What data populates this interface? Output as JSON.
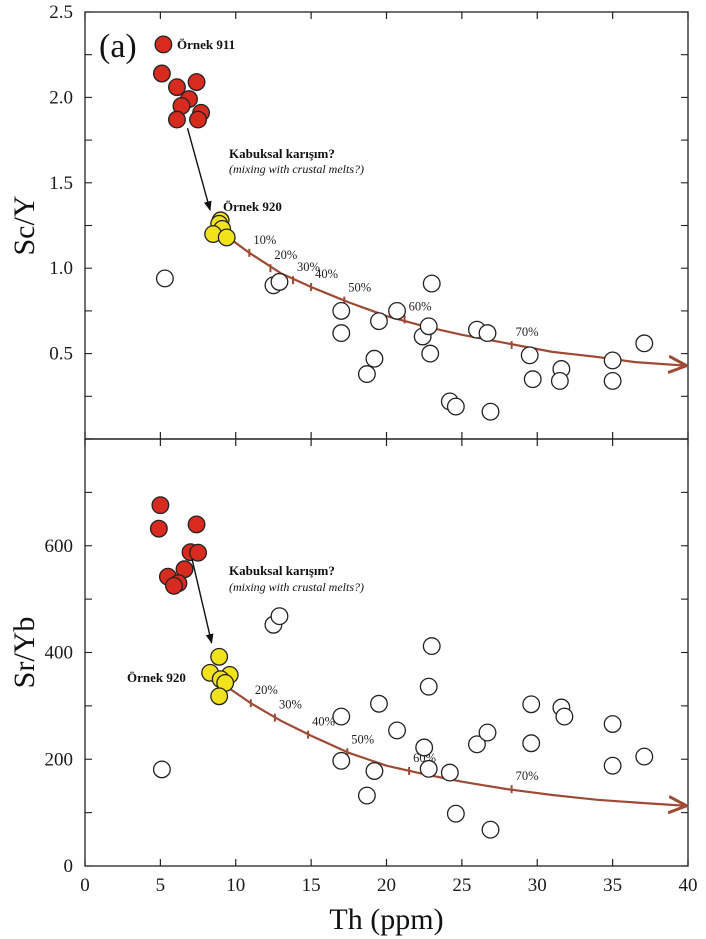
{
  "colors": {
    "crustal_open": "#ffffff",
    "sample_911": "#d62b1e",
    "sample_920": "#f2e21b",
    "curve": "#9e4a35",
    "stroke": "#222222"
  },
  "chart_data": [
    {
      "type": "scatter",
      "panel": "top",
      "title": "(a)",
      "xlabel": "",
      "ylabel": "Sc/Y",
      "xlim": [
        0,
        40
      ],
      "ylim": [
        0,
        2.5
      ],
      "xticks": [
        0,
        5,
        10,
        15,
        20,
        25,
        30,
        35,
        40
      ],
      "yticks": [
        0.5,
        1.0,
        1.5,
        2.0,
        2.5
      ],
      "ytick_labels": [
        "0.5",
        "1.0",
        "1.5",
        "2.0",
        "2.5"
      ],
      "series": [
        {
          "name": "Örnek 911",
          "color": "#d62b1e",
          "points": [
            [
              5.2,
              2.31
            ],
            [
              5.1,
              2.14
            ],
            [
              6.1,
              2.06
            ],
            [
              7.4,
              2.09
            ],
            [
              6.9,
              1.99
            ],
            [
              6.4,
              1.95
            ],
            [
              7.7,
              1.91
            ],
            [
              6.1,
              1.87
            ],
            [
              7.5,
              1.87
            ]
          ]
        },
        {
          "name": "Örnek 920",
          "color": "#f2e21b",
          "points": [
            [
              9.0,
              1.28
            ],
            [
              8.9,
              1.26
            ],
            [
              9.1,
              1.23
            ],
            [
              8.5,
              1.2
            ],
            [
              9.4,
              1.18
            ]
          ]
        },
        {
          "name": "",
          "color": "#ffffff",
          "points": [
            [
              5.3,
              0.94
            ],
            [
              12.5,
              0.9
            ],
            [
              12.9,
              0.92
            ],
            [
              17.0,
              0.75
            ],
            [
              17.0,
              0.62
            ],
            [
              19.5,
              0.69
            ],
            [
              20.7,
              0.75
            ],
            [
              23.0,
              0.91
            ],
            [
              22.4,
              0.6
            ],
            [
              22.8,
              0.66
            ],
            [
              22.9,
              0.5
            ],
            [
              19.2,
              0.47
            ],
            [
              18.7,
              0.38
            ],
            [
              26.0,
              0.64
            ],
            [
              26.7,
              0.62
            ],
            [
              24.2,
              0.22
            ],
            [
              24.6,
              0.19
            ],
            [
              26.9,
              0.16
            ],
            [
              29.5,
              0.49
            ],
            [
              29.7,
              0.35
            ],
            [
              31.6,
              0.41
            ],
            [
              31.5,
              0.34
            ],
            [
              35.0,
              0.46
            ],
            [
              35.0,
              0.34
            ],
            [
              37.1,
              0.56
            ]
          ]
        }
      ],
      "mixing_curve": {
        "points": [
          [
            9.2,
            1.2
          ],
          [
            10.9,
            1.09
          ],
          [
            13.0,
            0.97
          ],
          [
            15.0,
            0.89
          ],
          [
            17.5,
            0.8
          ],
          [
            20.0,
            0.72
          ],
          [
            22.5,
            0.66
          ],
          [
            25.0,
            0.61
          ],
          [
            28.0,
            0.56
          ],
          [
            31.0,
            0.51
          ],
          [
            34.0,
            0.48
          ],
          [
            36.5,
            0.45
          ],
          [
            39.8,
            0.43
          ]
        ],
        "ticks": [
          {
            "x": 10.9,
            "y": 1.09,
            "label": "10%"
          },
          {
            "x": 12.3,
            "y": 1.0,
            "label": "20%"
          },
          {
            "x": 13.8,
            "y": 0.93,
            "label": "30%"
          },
          {
            "x": 15.0,
            "y": 0.89,
            "label": "40%"
          },
          {
            "x": 17.2,
            "y": 0.81,
            "label": "50%"
          },
          {
            "x": 21.2,
            "y": 0.7,
            "label": "60%"
          },
          {
            "x": 28.3,
            "y": 0.55,
            "label": "70%"
          }
        ]
      },
      "arrow": {
        "from": [
          6.8,
          1.82
        ],
        "to": [
          8.3,
          1.34
        ]
      },
      "annotations": {
        "label_911": "Örnek 911",
        "label_920": "Örnek 920",
        "crustal_tr": "Kabuksal karışım?",
        "crustal_en": "(mixing with crustal melts?)"
      }
    },
    {
      "type": "scatter",
      "panel": "bottom",
      "xlabel": "Th (ppm)",
      "ylabel": "Sr/Yb",
      "xlim": [
        0,
        40
      ],
      "ylim": [
        0,
        800
      ],
      "xticks": [
        0,
        5,
        10,
        15,
        20,
        25,
        30,
        35,
        40
      ],
      "xtick_labels": [
        "0",
        "5",
        "10",
        "15",
        "20",
        "25",
        "30",
        "35",
        "40"
      ],
      "yticks": [
        0,
        200,
        400,
        600
      ],
      "ytick_labels": [
        "0",
        "200",
        "400",
        "600"
      ],
      "series": [
        {
          "name": "Örnek 911",
          "color": "#d62b1e",
          "points": [
            [
              5.0,
              676
            ],
            [
              4.9,
              632
            ],
            [
              7.4,
              640
            ],
            [
              7.0,
              588
            ],
            [
              7.5,
              587
            ],
            [
              6.6,
              556
            ],
            [
              5.5,
              542
            ],
            [
              6.2,
              530
            ],
            [
              5.9,
              525
            ]
          ]
        },
        {
          "name": "Örnek 920",
          "color": "#f2e21b",
          "points": [
            [
              8.9,
              392
            ],
            [
              8.3,
              362
            ],
            [
              9.6,
              358
            ],
            [
              9.0,
              350
            ],
            [
              9.3,
              343
            ],
            [
              8.9,
              318
            ]
          ]
        },
        {
          "name": "",
          "color": "#ffffff",
          "points": [
            [
              5.1,
              181
            ],
            [
              12.5,
              452
            ],
            [
              12.9,
              468
            ],
            [
              17.0,
              280
            ],
            [
              17.0,
              197
            ],
            [
              19.5,
              304
            ],
            [
              20.7,
              254
            ],
            [
              23.0,
              412
            ],
            [
              22.8,
              336
            ],
            [
              22.5,
              222
            ],
            [
              22.8,
              182
            ],
            [
              19.2,
              178
            ],
            [
              18.7,
              132
            ],
            [
              24.2,
              175
            ],
            [
              24.6,
              98
            ],
            [
              26.0,
              228
            ],
            [
              26.7,
              250
            ],
            [
              26.9,
              68
            ],
            [
              29.6,
              303
            ],
            [
              29.6,
              230
            ],
            [
              31.6,
              297
            ],
            [
              31.8,
              280
            ],
            [
              35.0,
              266
            ],
            [
              35.0,
              188
            ],
            [
              37.1,
              205
            ]
          ]
        }
      ],
      "mixing_curve": {
        "points": [
          [
            9.2,
            340
          ],
          [
            11.0,
            305
          ],
          [
            13.0,
            272
          ],
          [
            15.0,
            244
          ],
          [
            17.5,
            212
          ],
          [
            20.0,
            188
          ],
          [
            22.5,
            172
          ],
          [
            25.0,
            158
          ],
          [
            28.0,
            144
          ],
          [
            31.0,
            133
          ],
          [
            34.0,
            124
          ],
          [
            37.0,
            118
          ],
          [
            39.8,
            113
          ]
        ],
        "ticks": [
          {
            "x": 11.0,
            "y": 305,
            "label": "20%"
          },
          {
            "x": 12.6,
            "y": 278,
            "label": "30%"
          },
          {
            "x": 14.8,
            "y": 246,
            "label": "40%"
          },
          {
            "x": 17.4,
            "y": 213,
            "label": "50%"
          },
          {
            "x": 21.5,
            "y": 178,
            "label": "60%"
          },
          {
            "x": 28.3,
            "y": 144,
            "label": "70%"
          }
        ]
      },
      "arrow": {
        "from": [
          7.1,
          575
        ],
        "to": [
          8.4,
          418
        ]
      },
      "annotations": {
        "label_920": "Örnek 920",
        "crustal_tr": "Kabuksal karışım?",
        "crustal_en": "(mixing with crustal melts?)"
      }
    }
  ]
}
